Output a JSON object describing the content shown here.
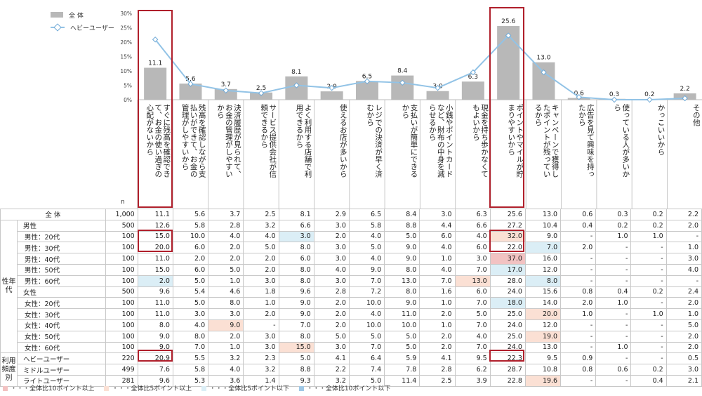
{
  "chart_data": {
    "type": "bar",
    "ylim": [
      0,
      30
    ],
    "yticks": [
      "30%",
      "25%",
      "20%",
      "15%",
      "10%",
      "5%",
      "0%"
    ],
    "n_label": "n",
    "categories": [
      "すぐに残高を確認でき て、お金の使い過ぎの 心配がないから",
      "残高を確認しながら支 払いができて、お金の 管理がしやすいから",
      "決済履歴が見られて、 お金の管理がしやすい から",
      "サービス提供会社が信 頼できるから",
      "よく利用する店舗で利 用できるから",
      "使えるお店が多いから",
      "レジでの決済が早く済 むから",
      "支払いが簡単にできる から",
      "小銭やポイントカード など、財布の中身を減 らせるから",
      "現金を持ち歩かなくて もよいから",
      "ポイントやマイルが貯 まりやすいから",
      "キャンペーンで獲得し たポイントが残ってい るから",
      "広告を見て興味を持っ たから",
      "使っている人が多いか ら",
      "かっこいいから",
      "その他"
    ],
    "series": [
      {
        "name": "全 体",
        "type": "bar",
        "color": "#b8b8b8",
        "values": [
          11.1,
          5.6,
          3.7,
          2.5,
          8.1,
          2.9,
          6.5,
          8.4,
          3.0,
          6.3,
          25.6,
          13.0,
          0.6,
          0.3,
          0.2,
          2.2
        ],
        "labels": [
          "11.1",
          "5.6",
          "3.7",
          "2.5",
          "8.1",
          "2.9",
          "6.5",
          "8.4",
          "3.0",
          "6.3",
          "25.6",
          "13.0",
          "0.6",
          "0.3",
          "0.2",
          "2.2"
        ]
      },
      {
        "name": "ヘビーユーザー",
        "type": "line",
        "color": "#92c3e6",
        "values": [
          20.9,
          5.5,
          3.2,
          2.3,
          5.0,
          4.1,
          6.4,
          5.9,
          4.1,
          9.5,
          22.3,
          9.5,
          0.9,
          0,
          0,
          0.5
        ]
      }
    ]
  },
  "table": {
    "rows": [
      {
        "group": "",
        "label": "全 体",
        "n": "1,000",
        "cells": [
          "11.1",
          "5.6",
          "3.7",
          "2.5",
          "8.1",
          "2.9",
          "6.5",
          "8.4",
          "3.0",
          "6.3",
          "25.6",
          "13.0",
          "0.6",
          "0.3",
          "0.2",
          "2.2"
        ],
        "hl": [
          "",
          "",
          "",
          "",
          "",
          "",
          "",
          "",
          "",
          "",
          "",
          "",
          "",
          "",
          "",
          ""
        ]
      },
      {
        "group": "性年代",
        "label": "男性",
        "n": "500",
        "cells": [
          "12.6",
          "5.8",
          "2.8",
          "3.2",
          "6.6",
          "3.0",
          "5.8",
          "8.8",
          "4.4",
          "6.6",
          "27.2",
          "10.4",
          "0.4",
          "0.2",
          "0.2",
          "2.0"
        ],
        "hl": [
          "",
          "",
          "",
          "",
          "",
          "",
          "",
          "",
          "",
          "",
          "",
          "",
          "",
          "",
          "",
          ""
        ]
      },
      {
        "group": "性年代",
        "label": "男性：20代",
        "n": "100",
        "cells": [
          "15.0",
          "10.0",
          "4.0",
          "4.0",
          "3.0",
          "2.0",
          "4.0",
          "5.0",
          "6.0",
          "4.0",
          "32.0",
          "9.0",
          "-",
          "1.0",
          "1.0",
          "-"
        ],
        "hl": [
          "",
          "",
          "",
          "",
          "lo5",
          "",
          "",
          "",
          "",
          "",
          "hi5",
          "",
          "",
          "",
          "",
          ""
        ]
      },
      {
        "group": "性年代",
        "label": "男性：30代",
        "n": "100",
        "cells": [
          "20.0",
          "6.0",
          "2.0",
          "5.0",
          "8.0",
          "3.0",
          "5.0",
          "9.0",
          "4.0",
          "6.0",
          "22.0",
          "7.0",
          "2.0",
          "-",
          "-",
          "1.0"
        ],
        "hl": [
          "",
          "",
          "",
          "",
          "",
          "",
          "",
          "",
          "",
          "",
          "",
          "lo5",
          "",
          "",
          "",
          ""
        ]
      },
      {
        "group": "性年代",
        "label": "男性：40代",
        "n": "100",
        "cells": [
          "11.0",
          "2.0",
          "2.0",
          "2.0",
          "6.0",
          "3.0",
          "4.0",
          "9.0",
          "1.0",
          "3.0",
          "37.0",
          "16.0",
          "-",
          "-",
          "-",
          "3.0"
        ],
        "hl": [
          "",
          "",
          "",
          "",
          "",
          "",
          "",
          "",
          "",
          "",
          "hi10",
          "",
          "",
          "",
          "",
          ""
        ]
      },
      {
        "group": "性年代",
        "label": "男性：50代",
        "n": "100",
        "cells": [
          "15.0",
          "6.0",
          "5.0",
          "2.0",
          "8.0",
          "4.0",
          "9.0",
          "8.0",
          "4.0",
          "7.0",
          "17.0",
          "12.0",
          "-",
          "-",
          "-",
          "4.0"
        ],
        "hl": [
          "",
          "",
          "",
          "",
          "",
          "",
          "",
          "",
          "",
          "",
          "lo5",
          "",
          "",
          "",
          "",
          ""
        ]
      },
      {
        "group": "性年代",
        "label": "男性：60代",
        "n": "100",
        "cells": [
          "2.0",
          "5.0",
          "1.0",
          "3.0",
          "8.0",
          "3.0",
          "7.0",
          "13.0",
          "7.0",
          "13.0",
          "28.0",
          "8.0",
          "-",
          "-",
          "-",
          "-"
        ],
        "hl": [
          "lo5",
          "",
          "",
          "",
          "",
          "",
          "",
          "",
          "",
          "hi5",
          "",
          "lo5",
          "",
          "",
          "",
          ""
        ]
      },
      {
        "group": "性年代",
        "label": "女性",
        "n": "500",
        "cells": [
          "9.6",
          "5.4",
          "4.6",
          "1.8",
          "9.6",
          "2.8",
          "7.2",
          "8.0",
          "1.6",
          "6.0",
          "24.0",
          "15.6",
          "0.8",
          "0.4",
          "0.2",
          "2.4"
        ],
        "hl": [
          "",
          "",
          "",
          "",
          "",
          "",
          "",
          "",
          "",
          "",
          "",
          "",
          "",
          "",
          "",
          ""
        ]
      },
      {
        "group": "性年代",
        "label": "女性：20代",
        "n": "100",
        "cells": [
          "11.0",
          "5.0",
          "8.0",
          "1.0",
          "9.0",
          "2.0",
          "10.0",
          "9.0",
          "1.0",
          "7.0",
          "18.0",
          "14.0",
          "2.0",
          "1.0",
          "-",
          "2.0"
        ],
        "hl": [
          "",
          "",
          "",
          "",
          "",
          "",
          "",
          "",
          "",
          "",
          "lo5",
          "",
          "",
          "",
          "",
          ""
        ]
      },
      {
        "group": "性年代",
        "label": "女性：30代",
        "n": "100",
        "cells": [
          "11.0",
          "3.0",
          "3.0",
          "2.0",
          "9.0",
          "2.0",
          "4.0",
          "11.0",
          "2.0",
          "5.0",
          "25.0",
          "20.0",
          "1.0",
          "-",
          "1.0",
          "1.0"
        ],
        "hl": [
          "",
          "",
          "",
          "",
          "",
          "",
          "",
          "",
          "",
          "",
          "",
          "hi5",
          "",
          "",
          "",
          ""
        ]
      },
      {
        "group": "性年代",
        "label": "女性：40代",
        "n": "100",
        "cells": [
          "8.0",
          "4.0",
          "9.0",
          "-",
          "7.0",
          "2.0",
          "10.0",
          "10.0",
          "1.0",
          "7.0",
          "24.0",
          "12.0",
          "-",
          "-",
          "-",
          "5.0"
        ],
        "hl": [
          "",
          "",
          "hi5",
          "",
          "",
          "",
          "",
          "",
          "",
          "",
          "",
          "",
          "",
          "",
          "",
          ""
        ]
      },
      {
        "group": "性年代",
        "label": "女性：50代",
        "n": "100",
        "cells": [
          "9.0",
          "8.0",
          "2.0",
          "3.0",
          "8.0",
          "5.0",
          "5.0",
          "5.0",
          "2.0",
          "4.0",
          "25.0",
          "19.0",
          "-",
          "-",
          "-",
          "2.0"
        ],
        "hl": [
          "",
          "",
          "",
          "",
          "",
          "",
          "",
          "",
          "",
          "",
          "",
          "hi5",
          "",
          "",
          "",
          ""
        ]
      },
      {
        "group": "性年代",
        "label": "女性：60代",
        "n": "100",
        "cells": [
          "9.0",
          "7.0",
          "1.0",
          "3.0",
          "15.0",
          "3.0",
          "7.0",
          "5.0",
          "2.0",
          "7.0",
          "24.0",
          "13.0",
          "-",
          "1.0",
          "-",
          "2.0"
        ],
        "hl": [
          "",
          "",
          "",
          "",
          "hi5",
          "",
          "",
          "",
          "",
          "",
          "",
          "",
          "",
          "",
          "",
          ""
        ]
      },
      {
        "group": "利用頻度別",
        "label": "ヘビーユーザー",
        "n": "220",
        "cells": [
          "20.9",
          "5.5",
          "3.2",
          "2.3",
          "5.0",
          "4.1",
          "6.4",
          "5.9",
          "4.1",
          "9.5",
          "22.3",
          "9.5",
          "0.9",
          "-",
          "-",
          "0.5"
        ],
        "hl": [
          "",
          "",
          "",
          "",
          "",
          "",
          "",
          "",
          "",
          "",
          "",
          "",
          "",
          "",
          "",
          ""
        ]
      },
      {
        "group": "利用頻度別",
        "label": "ミドルユーザー",
        "n": "499",
        "cells": [
          "7.6",
          "5.8",
          "4.0",
          "3.2",
          "8.8",
          "2.2",
          "7.4",
          "7.8",
          "2.8",
          "6.2",
          "28.7",
          "10.8",
          "0.8",
          "0.6",
          "0.2",
          "3.0"
        ],
        "hl": [
          "",
          "",
          "",
          "",
          "",
          "",
          "",
          "",
          "",
          "",
          "",
          "",
          "",
          "",
          "",
          ""
        ]
      },
      {
        "group": "利用頻度別",
        "label": "ライトユーザー",
        "n": "281",
        "cells": [
          "9.6",
          "5.3",
          "3.6",
          "1.4",
          "9.3",
          "3.2",
          "5.0",
          "11.4",
          "2.5",
          "3.9",
          "22.8",
          "19.6",
          "-",
          "-",
          "0.4",
          "2.1"
        ],
        "hl": [
          "",
          "",
          "",
          "",
          "",
          "",
          "",
          "",
          "",
          "",
          "",
          "hi5",
          "",
          "",
          "",
          ""
        ]
      }
    ],
    "group_labels": {
      "sex_age": "性年代",
      "freq": "利用頻度別"
    }
  },
  "legend_bottom": [
    {
      "color": "#f2c2c2",
      "label": "・・・全体比10ポイント以上"
    },
    {
      "color": "#fbe0d4",
      "label": "・・・全体比5ポイント以上"
    },
    {
      "color": "#dbeef6",
      "label": "・・・全体比5ポイント以下"
    },
    {
      "color": "#9fc8e6",
      "label": "・・・全体比10ポイント以下"
    }
  ]
}
